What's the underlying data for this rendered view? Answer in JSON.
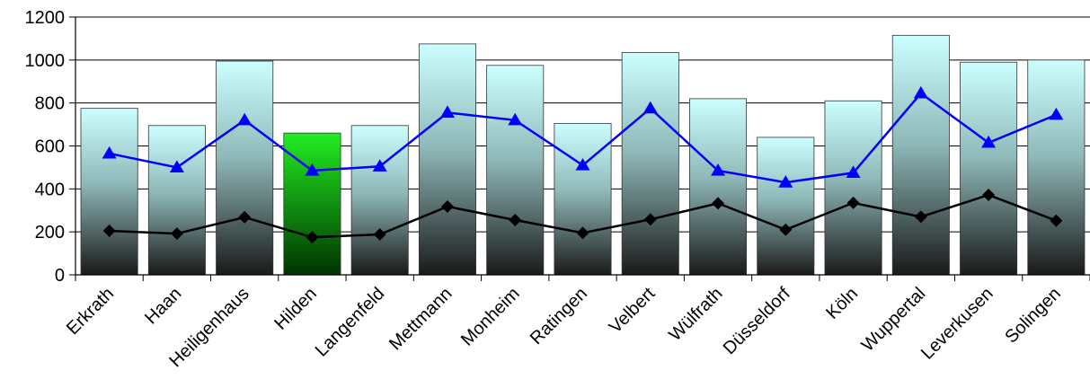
{
  "chart_data": {
    "type": "bar",
    "title": "",
    "xlabel": "",
    "ylabel": "",
    "ylim": [
      0,
      1200
    ],
    "yticks": [
      0,
      200,
      400,
      600,
      800,
      1000,
      1200
    ],
    "grid": true,
    "legend": "none",
    "categories": [
      "Erkrath",
      "Haan",
      "Heiligenhaus",
      "Hilden",
      "Langenfeld",
      "Mettmann",
      "Monheim",
      "Ratingen",
      "Velbert",
      "Wülfrath",
      "Düsseldorf",
      "Köln",
      "Wuppertal",
      "Leverkusen",
      "Solingen"
    ],
    "highlight_category": "Hilden",
    "series": [
      {
        "type": "bar",
        "values": [
          775,
          695,
          995,
          660,
          695,
          1075,
          975,
          705,
          1035,
          820,
          640,
          810,
          1115,
          990,
          1000
        ]
      },
      {
        "type": "line",
        "marker": "triangle",
        "values": [
          565,
          500,
          720,
          485,
          505,
          755,
          720,
          510,
          775,
          485,
          430,
          475,
          845,
          615,
          745
        ]
      },
      {
        "type": "line",
        "marker": "diamond",
        "values": [
          205,
          192,
          268,
          175,
          188,
          318,
          255,
          195,
          258,
          333,
          210,
          335,
          270,
          372,
          252
        ]
      }
    ],
    "colors": {
      "bar_top": "#ccffff",
      "bar_bottom": "#1a1a1a",
      "highlight_top": "#22ee22",
      "highlight_bottom": "#003300",
      "line_triangle": "#0000ff",
      "line_diamond": "#000000",
      "bar_outline": "#333333"
    }
  }
}
